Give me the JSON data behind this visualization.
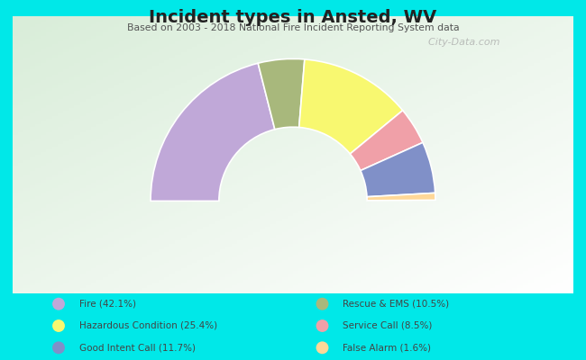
{
  "title": "Incident types in Ansted, WV",
  "subtitle": "Based on 2003 - 2018 National Fire Incident Reporting System data",
  "bg_cyan": "#00e8e8",
  "chart_bg_color": "#f0f8f0",
  "watermark": "  City-Data.com",
  "segments": [
    {
      "name": "Fire",
      "value": 42.1,
      "color": "#c0a8d8"
    },
    {
      "name": "Rescue & EMS",
      "value": 10.5,
      "color": "#a8b87c"
    },
    {
      "name": "Hazardous Condition",
      "value": 25.4,
      "color": "#f8f870"
    },
    {
      "name": "Service Call",
      "value": 8.5,
      "color": "#f0a0a8"
    },
    {
      "name": "Good Intent Call",
      "value": 11.7,
      "color": "#8090c8"
    },
    {
      "name": "False Alarm",
      "value": 1.6,
      "color": "#ffd898"
    }
  ],
  "legend_left": [
    {
      "label": "Fire (42.1%)",
      "color": "#c0a8d8"
    },
    {
      "label": "Hazardous Condition (25.4%)",
      "color": "#f8f870"
    },
    {
      "label": "Good Intent Call (11.7%)",
      "color": "#8090c8"
    }
  ],
  "legend_right": [
    {
      "label": "Rescue & EMS (10.5%)",
      "color": "#a8b87c"
    },
    {
      "label": "Service Call (8.5%)",
      "color": "#f0a0a8"
    },
    {
      "label": "False Alarm (1.6%)",
      "color": "#ffd898"
    }
  ],
  "title_color": "#222222",
  "subtitle_color": "#555555",
  "legend_text_color": "#444444"
}
